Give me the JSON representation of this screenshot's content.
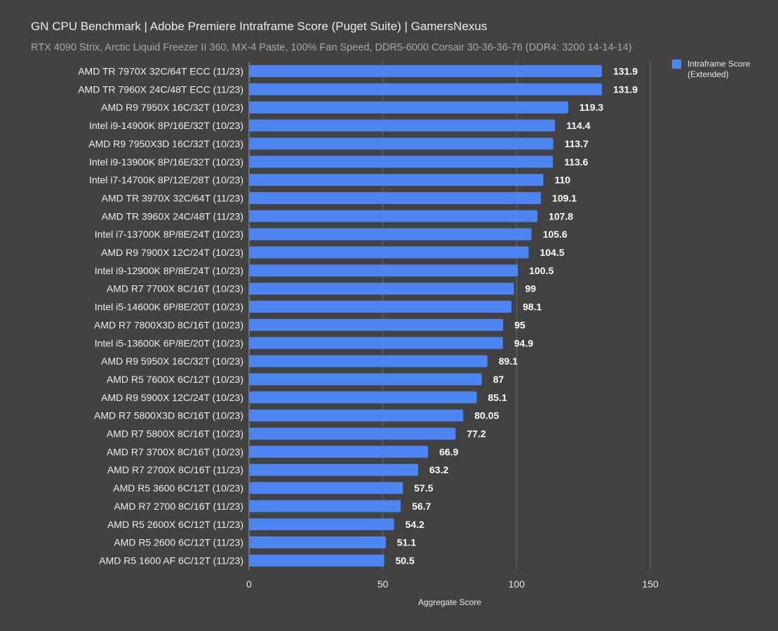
{
  "chart_data": {
    "type": "bar",
    "orientation": "horizontal",
    "title": "GN CPU Benchmark | Adobe Premiere Intraframe Score (Puget Suite) | GamersNexus",
    "subtitle": "RTX 4090 Strix, Arctic Liquid Freezer II 360, MX-4 Paste, 100% Fan Speed, DDR5-6000 Corsair 30-36-36-76 (DDR4: 3200 14-14-14)",
    "xlabel": "Aggregate Score",
    "ylabel": "",
    "xlim": [
      0,
      150
    ],
    "xticks": [
      0,
      50,
      100,
      150
    ],
    "grid": true,
    "legend_position": "top-right",
    "bar_color": "#4d86f2",
    "categories": [
      "AMD TR 7970X 32C/64T ECC (11/23)",
      "AMD TR 7960X 24C/48T ECC (11/23)",
      "AMD R9 7950X 16C/32T (10/23)",
      "Intel i9-14900K 8P/16E/32T (10/23)",
      "AMD R9 7950X3D 16C/32T (10/23)",
      "Intel i9-13900K 8P/16E/32T (10/23)",
      "Intel i7-14700K 8P/12E/28T (10/23)",
      "AMD TR 3970X 32C/64T (11/23)",
      "AMD TR 3960X 24C/48T (11/23)",
      "Intel i7-13700K 8P/8E/24T (10/23)",
      "AMD R9 7900X 12C/24T (10/23)",
      "Intel i9-12900K 8P/8E/24T (10/23)",
      "AMD R7 7700X 8C/16T (10/23)",
      "Intel i5-14600K 6P/8E/20T (10/23)",
      "AMD R7 7800X3D 8C/16T (10/23)",
      "Intel i5-13600K 6P/8E/20T (10/23)",
      "AMD R9 5950X 16C/32T (10/23)",
      "AMD R5 7600X 6C/12T (10/23)",
      "AMD R9 5900X 12C/24T (10/23)",
      "AMD R7 5800X3D 8C/16T (10/23)",
      "AMD R7 5800X 8C/16T (10/23)",
      "AMD R7 3700X 8C/16T (10/23)",
      "AMD R7 2700X 8C/16T (11/23)",
      "AMD R5 3600 6C/12T (10/23)",
      "AMD R7 2700 8C/16T (11/23)",
      "AMD R5 2600X 6C/12T (11/23)",
      "AMD R5 2600 6C/12T (11/23)",
      "AMD R5 1600 AF 6C/12T (11/23)"
    ],
    "series": [
      {
        "name": "Intraframe Score (Extended)",
        "values": [
          131.9,
          131.9,
          119.3,
          114.4,
          113.7,
          113.6,
          110,
          109.1,
          107.8,
          105.6,
          104.5,
          100.5,
          99,
          98.1,
          95,
          94.9,
          89.1,
          87,
          85.1,
          80.05,
          77.2,
          66.9,
          63.2,
          57.5,
          56.7,
          54.2,
          51.1,
          50.5
        ],
        "labels": [
          "131.9",
          "131.9",
          "119.3",
          "114.4",
          "113.7",
          "113.6",
          "110",
          "109.1",
          "107.8",
          "105.6",
          "104.5",
          "100.5",
          "99",
          "98.1",
          "95",
          "94.9",
          "89.1",
          "87",
          "85.1",
          "80.05",
          "77.2",
          "66.9",
          "63.2",
          "57.5",
          "56.7",
          "54.2",
          "51.1",
          "50.5"
        ]
      }
    ]
  }
}
